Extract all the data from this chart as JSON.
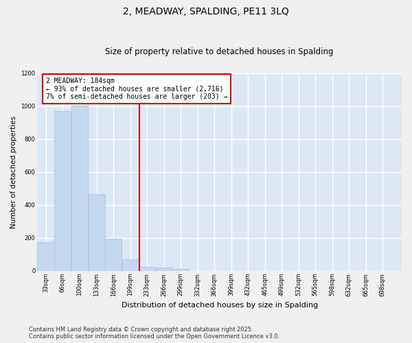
{
  "title": "2, MEADWAY, SPALDING, PE11 3LQ",
  "subtitle": "Size of property relative to detached houses in Spalding",
  "xlabel": "Distribution of detached houses by size in Spalding",
  "ylabel": "Number of detached properties",
  "bar_color": "#c5d8f0",
  "bar_edge_color": "#a0bedd",
  "bg_color": "#dde8f5",
  "grid_color": "#ffffff",
  "fig_bg_color": "#f0f0f0",
  "annotation_line_color": "#cc0000",
  "annotation_box_text": "2 MEADWAY: 184sqm\n← 93% of detached houses are smaller (2,716)\n7% of semi-detached houses are larger (203) →",
  "property_size": 184,
  "footnote": "Contains HM Land Registry data © Crown copyright and database right 2025.\nContains public sector information licensed under the Open Government Licence v3.0.",
  "categories": [
    "33sqm",
    "66sqm",
    "100sqm",
    "133sqm",
    "166sqm",
    "199sqm",
    "233sqm",
    "266sqm",
    "299sqm",
    "332sqm",
    "366sqm",
    "399sqm",
    "432sqm",
    "465sqm",
    "499sqm",
    "532sqm",
    "565sqm",
    "598sqm",
    "632sqm",
    "665sqm",
    "698sqm"
  ],
  "values": [
    175,
    970,
    1005,
    465,
    195,
    70,
    25,
    20,
    10,
    0,
    0,
    0,
    0,
    0,
    0,
    0,
    0,
    0,
    0,
    0,
    0
  ],
  "bin_starts": [
    16.5,
    49.5,
    83,
    116.5,
    149.5,
    182.5,
    215.5,
    248.5,
    281.5,
    314.5,
    347.5,
    380.5,
    413.5,
    446.5,
    479.5,
    512.5,
    545.5,
    578.5,
    611.5,
    644.5,
    677.5
  ],
  "bin_width": 33,
  "xlim_left": 0,
  "xlim_right": 715,
  "ylim": [
    0,
    1200
  ],
  "yticks": [
    0,
    200,
    400,
    600,
    800,
    1000,
    1200
  ],
  "title_fontsize": 10,
  "subtitle_fontsize": 8.5,
  "ylabel_fontsize": 7.5,
  "xlabel_fontsize": 8,
  "tick_fontsize": 6,
  "footnote_fontsize": 6,
  "annot_fontsize": 7
}
